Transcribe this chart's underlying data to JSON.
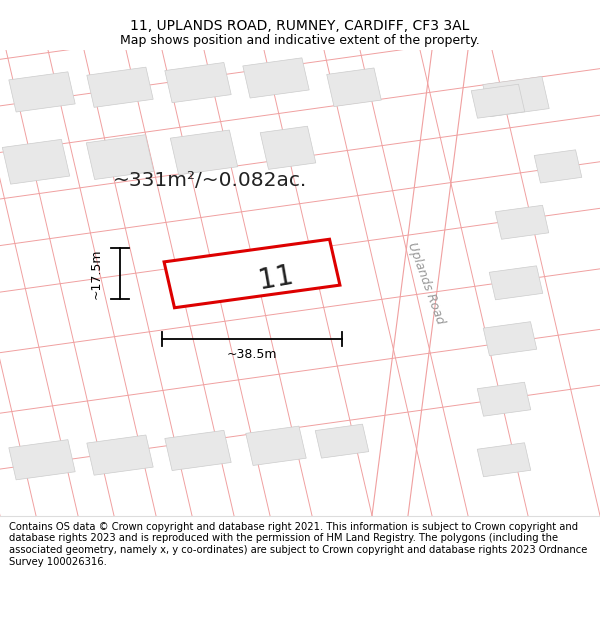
{
  "title_line1": "11, UPLANDS ROAD, RUMNEY, CARDIFF, CF3 3AL",
  "title_line2": "Map shows position and indicative extent of the property.",
  "footer_text": "Contains OS data © Crown copyright and database right 2021. This information is subject to Crown copyright and database rights 2023 and is reproduced with the permission of HM Land Registry. The polygons (including the associated geometry, namely x, y co-ordinates) are subject to Crown copyright and database rights 2023 Ordnance Survey 100026316.",
  "area_text": "~331m²/~0.082ac.",
  "property_number": "11",
  "dim_width": "~38.5m",
  "dim_height": "~17.5m",
  "road_label": "Uplands Road",
  "bg_color": "#ffffff",
  "map_bg": "#ffffff",
  "building_fill": "#e8e8e8",
  "building_edge": "#cccccc",
  "plot_line_color": "#f0a0a0",
  "main_fill": "#ffffff",
  "main_edge": "#dd0000",
  "title_fontsize": 10,
  "subtitle_fontsize": 9,
  "footer_fontsize": 7.2,
  "area_fontsize": 16
}
